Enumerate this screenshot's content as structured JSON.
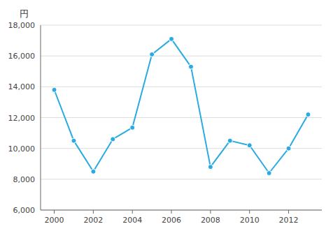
{
  "chart_data": {
    "type": "line",
    "ylabel": "円",
    "x": [
      2000,
      2001,
      2002,
      2003,
      2004,
      2005,
      2006,
      2007,
      2008,
      2009,
      2010,
      2011,
      2012,
      2013
    ],
    "values": [
      13800,
      10500,
      8500,
      10600,
      11350,
      16100,
      17100,
      15300,
      8800,
      10500,
      10200,
      8400,
      10000,
      12200
    ],
    "color": "#29ABE2",
    "marker": "circle",
    "xlim": [
      1999.3,
      2013.7
    ],
    "xticks": [
      2000,
      2002,
      2004,
      2006,
      2008,
      2010,
      2012
    ],
    "ylim": [
      6000,
      18000
    ],
    "yticks": [
      {
        "value": 6000,
        "label": "6,000"
      },
      {
        "value": 8000,
        "label": "8,000"
      },
      {
        "value": 10000,
        "label": "10,000"
      },
      {
        "value": 12000,
        "label": "12,000"
      },
      {
        "value": 14000,
        "label": "14,000"
      },
      {
        "value": 16000,
        "label": "16,000"
      },
      {
        "value": 18000,
        "label": "18,000"
      }
    ],
    "grid": true
  }
}
